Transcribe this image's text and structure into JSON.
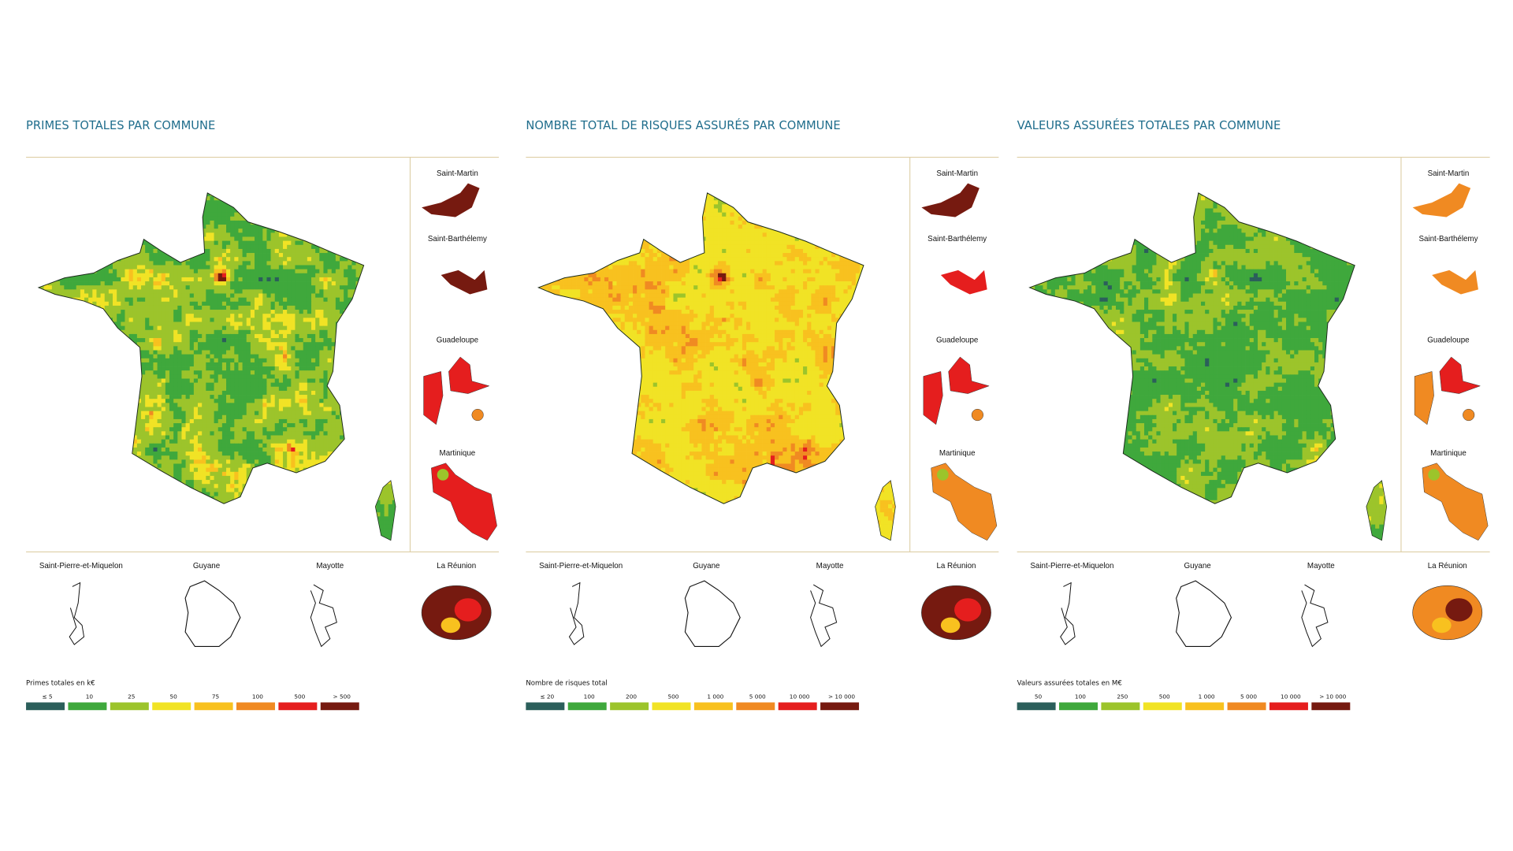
{
  "panels": [
    {
      "title": "PRIMES TOTALES PAR COMMUNE",
      "insets": [
        "Saint-Martin",
        "Saint-Barthélemy",
        "Guadeloupe",
        "Martinique"
      ],
      "bottom_insets": [
        "Saint-Pierre-et-Miquelon",
        "Guyane",
        "Mayotte",
        "La Réunion"
      ],
      "legend": {
        "title": "Primes totales en k€",
        "labels": [
          "≤ 5",
          "10",
          "25",
          "50",
          "75",
          "100",
          "500",
          "> 500"
        ],
        "colors": [
          "#2b5f5b",
          "#3fa83c",
          "#9cc42b",
          "#f1e325",
          "#f8c11f",
          "#f08a22",
          "#e51e1e",
          "#761a10"
        ]
      }
    },
    {
      "title": "NOMBRE TOTAL DE RISQUES ASSURÉS PAR COMMUNE",
      "insets": [
        "Saint-Martin",
        "Saint-Barthélemy",
        "Guadeloupe",
        "Martinique"
      ],
      "bottom_insets": [
        "Saint-Pierre-et-Miquelon",
        "Guyane",
        "Mayotte",
        "La Réunion"
      ],
      "legend": {
        "title": "Nombre de risques total",
        "labels": [
          "≤ 20",
          "100",
          "200",
          "500",
          "1 000",
          "5 000",
          "10 000",
          "> 10 000"
        ],
        "colors": [
          "#2b5f5b",
          "#3fa83c",
          "#9cc42b",
          "#f1e325",
          "#f8c11f",
          "#f08a22",
          "#e51e1e",
          "#761a10"
        ]
      }
    },
    {
      "title": "VALEURS ASSURÉES TOTALES PAR COMMUNE",
      "insets": [
        "Saint-Martin",
        "Saint-Barthélemy",
        "Guadeloupe",
        "Martinique"
      ],
      "bottom_insets": [
        "Saint-Pierre-et-Miquelon",
        "Guyane",
        "Mayotte",
        "La Réunion"
      ],
      "legend": {
        "title": "Valeurs assurées totales en M€",
        "labels": [
          "50",
          "100",
          "250",
          "500",
          "1 000",
          "5 000",
          "10 000",
          "> 10 000"
        ],
        "colors": [
          "#2b5f5b",
          "#3fa83c",
          "#9cc42b",
          "#f1e325",
          "#f8c11f",
          "#f08a22",
          "#e51e1e",
          "#761a10"
        ]
      }
    }
  ]
}
